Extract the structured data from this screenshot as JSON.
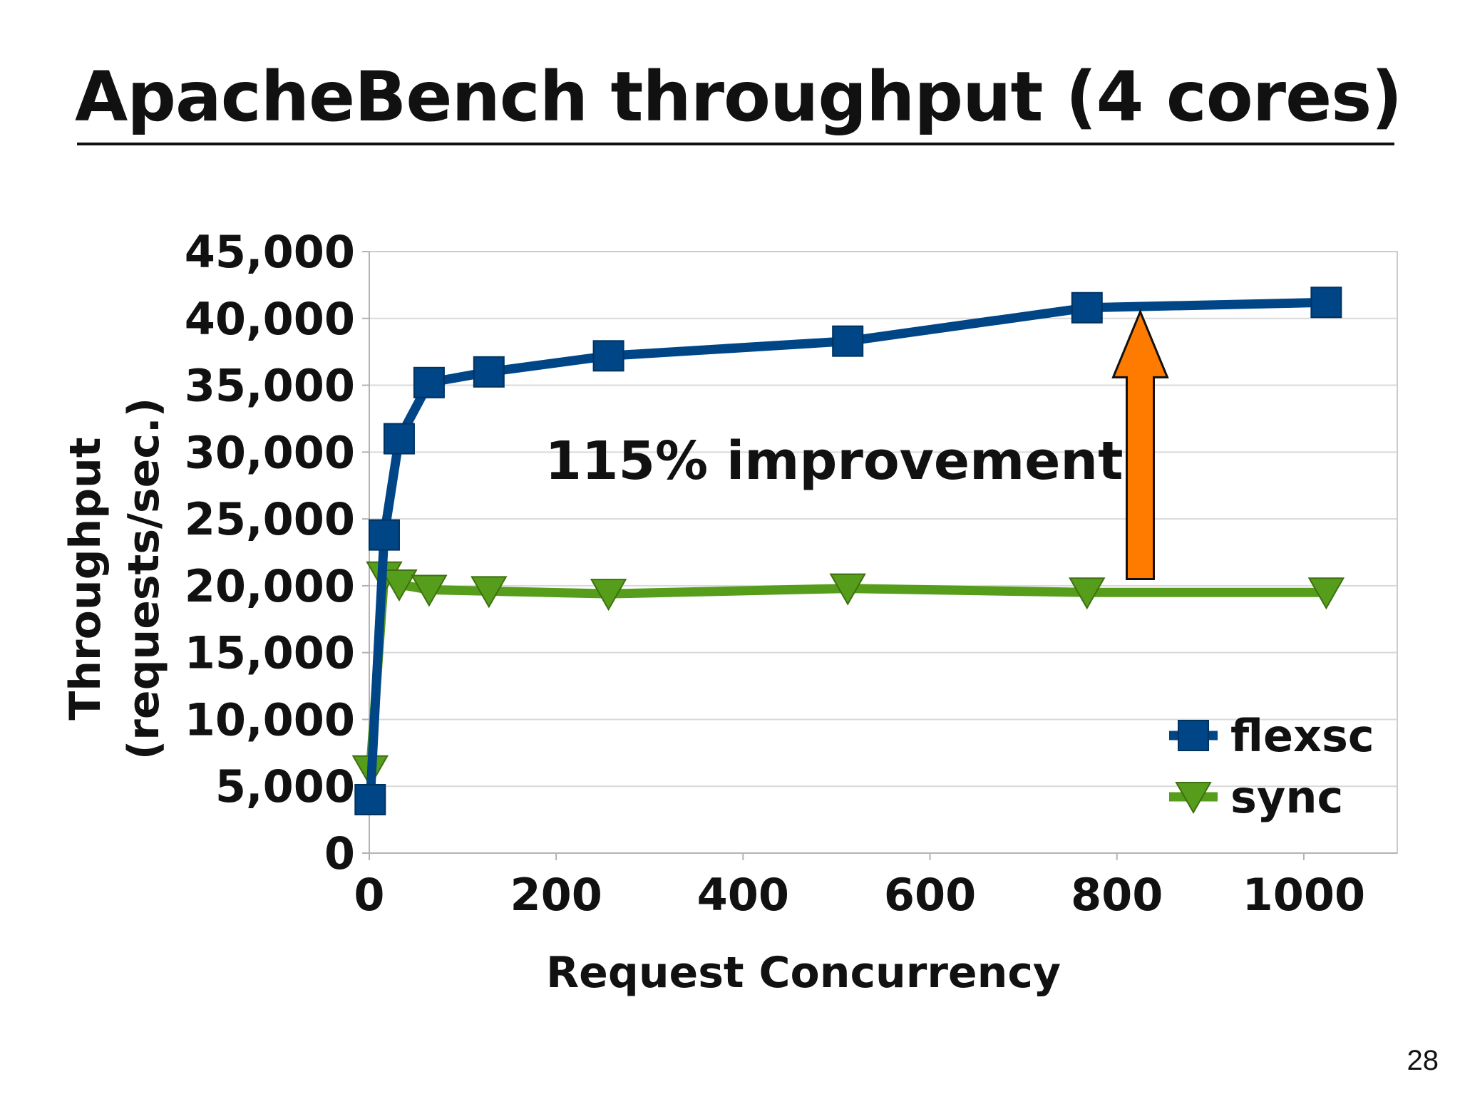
{
  "slide": {
    "title": "ApacheBench throughput (4 cores)",
    "page_number": "28"
  },
  "chart_data": {
    "type": "line",
    "xlabel": "Request Concurrency",
    "ylabel_line1": "Throughput",
    "ylabel_line2": "(requests/sec.)",
    "xlim": [
      0,
      1100
    ],
    "ylim": [
      0,
      45000
    ],
    "x_ticks": [
      0,
      200,
      400,
      600,
      800,
      1000
    ],
    "x_tick_labels": [
      "0",
      "200",
      "400",
      "600",
      "800",
      "1000"
    ],
    "y_ticks": [
      0,
      5000,
      10000,
      15000,
      20000,
      25000,
      30000,
      35000,
      40000,
      45000
    ],
    "y_tick_labels": [
      "0",
      "5,000",
      "10,000",
      "15,000",
      "20,000",
      "25,000",
      "30,000",
      "35,000",
      "40,000",
      "45,000"
    ],
    "grid": "horizontal",
    "legend_position": "bottom-right",
    "series": [
      {
        "name": "flexsc",
        "color": "#004586",
        "marker": "square",
        "x": [
          1,
          16,
          32,
          64,
          128,
          256,
          512,
          768,
          1024
        ],
        "values": [
          4000,
          23800,
          31000,
          35200,
          36000,
          37200,
          38300,
          40800,
          41200
        ]
      },
      {
        "name": "sync",
        "color": "#579d1c",
        "marker": "triangle-down",
        "x": [
          1,
          16,
          32,
          64,
          128,
          256,
          512,
          768,
          1024
        ],
        "values": [
          6200,
          20700,
          20100,
          19700,
          19600,
          19400,
          19800,
          19500,
          19500
        ]
      }
    ],
    "annotations": [
      {
        "text": "115% improvement",
        "arrow_color": "#ff7b00",
        "arrow_x": 825,
        "arrow_from_y": 20500,
        "arrow_to_y": 40500
      }
    ]
  }
}
